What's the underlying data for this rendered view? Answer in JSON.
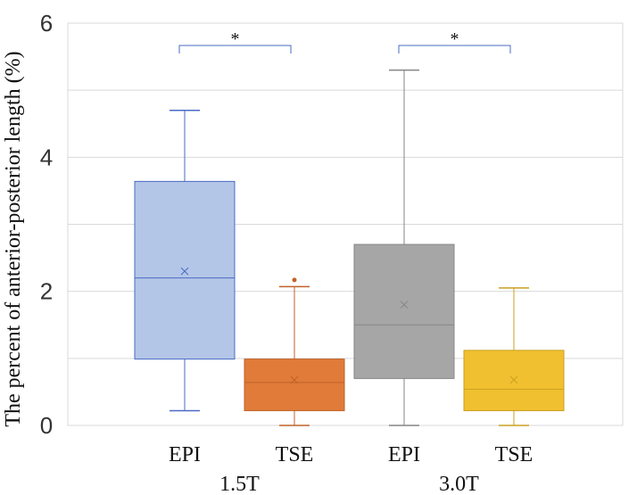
{
  "chart_data": {
    "type": "boxplot",
    "title": "",
    "ylabel": "The percent of anterior-posterior length (%)",
    "xlabel": "",
    "ylim": [
      0,
      6
    ],
    "yticks": [
      0,
      2,
      4,
      6
    ],
    "ytick_labels": [
      "0",
      "2",
      "4",
      "6"
    ],
    "minor_gridlines": [
      1,
      3,
      5
    ],
    "grid": true,
    "groups": [
      "1.5T",
      "3.0T"
    ],
    "series": [
      {
        "name": "EPI",
        "group": "1.5T",
        "min": 0.22,
        "q1": 0.99,
        "median": 2.2,
        "q3": 3.64,
        "max": 4.7,
        "mean": 2.3,
        "outliers": [],
        "fill": "#b4c6e7",
        "stroke": "#4a6bc4"
      },
      {
        "name": "TSE",
        "group": "1.5T",
        "min": 0.0,
        "q1": 0.22,
        "median": 0.64,
        "q3": 0.99,
        "max": 2.07,
        "mean": 0.68,
        "outliers": [
          2.17
        ],
        "fill": "#e07b39",
        "stroke": "#c0622a"
      },
      {
        "name": "EPI",
        "group": "3.0T",
        "min": 0.0,
        "q1": 0.7,
        "median": 1.5,
        "q3": 2.7,
        "max": 5.3,
        "mean": 1.8,
        "outliers": [],
        "fill": "#a6a6a6",
        "stroke": "#858585"
      },
      {
        "name": "TSE",
        "group": "3.0T",
        "min": 0.0,
        "q1": 0.22,
        "median": 0.54,
        "q3": 1.12,
        "max": 2.05,
        "mean": 0.68,
        "outliers": [],
        "fill": "#f0c030",
        "stroke": "#c9a020"
      }
    ],
    "significance": [
      {
        "from": 0,
        "to": 1,
        "label": "*",
        "y": 5.8
      },
      {
        "from": 2,
        "to": 3,
        "label": "*",
        "y": 5.8
      }
    ],
    "bracket_color": "#4a6bc4"
  }
}
